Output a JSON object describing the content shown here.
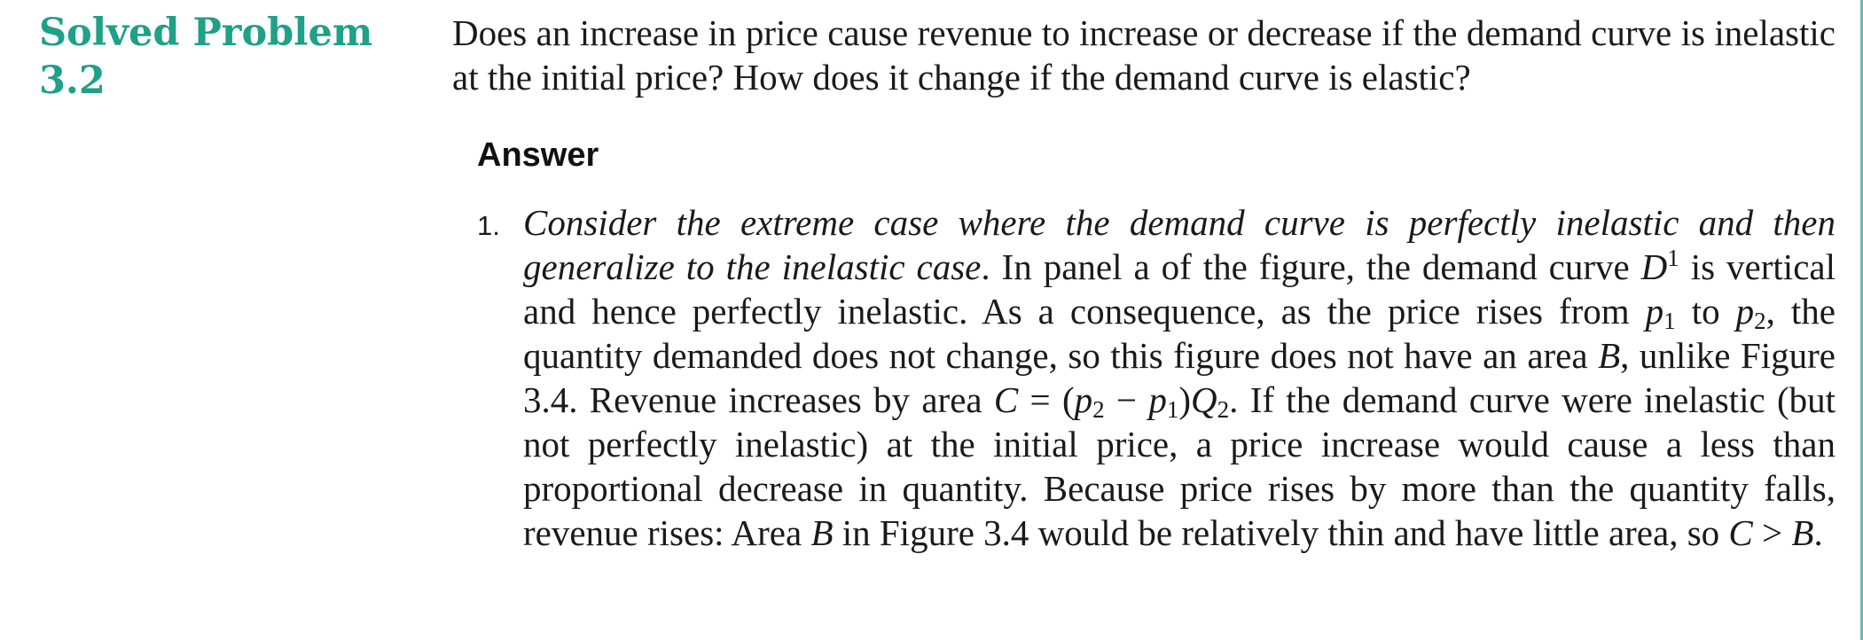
{
  "problem": {
    "label_line1": "Solved Problem",
    "label_line2": "3.2",
    "question": "Does an increase in price cause revenue to increase or decrease if the demand curve is inelastic at the initial price? How does it change if the demand curve is elastic?"
  },
  "answer": {
    "heading": "Answer",
    "item_number": "1.",
    "lead_italic": "Consider the extreme case where the demand curve is perfectly inelastic and then generalize to the inelastic case",
    "t1": ". In panel a of the figure, the demand curve ",
    "D": "D",
    "sup1": "1",
    "t2": " is vertical and hence perfectly inelastic. As a consequence, as the price rises from ",
    "p": "p",
    "sub1": "1",
    "t3": " to ",
    "sub2": "2",
    "t4": ", the quantity demanded does not change, so this figure does not have an area ",
    "B": "B",
    "t5": ", unlike Figure 3.4. Revenue increases by area ",
    "C": "C",
    "t6": " = (",
    "t7": " − ",
    "t8": ")",
    "Q": "Q",
    "t9": ". If the demand curve were inelastic (but not perfectly inelastic) at the initial price, a price increase would cause a less than proportional decrease in quantity. Because price rises by more than the quantity falls, revenue rises: Area ",
    "t10": " in Figure 3.4 would be relatively thin and have little area, so ",
    "t11": " > ",
    "t12": "."
  },
  "colors": {
    "accent": "#1fa088",
    "edge": "#6fb8b0",
    "text": "#1a1a1a"
  }
}
